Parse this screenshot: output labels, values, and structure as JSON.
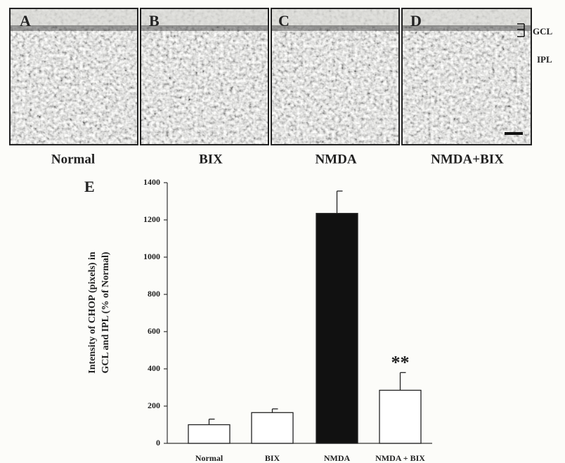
{
  "panels": [
    {
      "letter": "A",
      "label": "Normal"
    },
    {
      "letter": "B",
      "label": "BIX"
    },
    {
      "letter": "C",
      "label": "NMDA"
    },
    {
      "letter": "D",
      "label": "NMDA+BIX"
    }
  ],
  "layers": [
    "GCL",
    "IPL"
  ],
  "chart_data": {
    "type": "bar",
    "panel_label": "E",
    "ylabel": [
      "Intensity of CHOP (pixels) in",
      "GCL and IPL (% of Normal)"
    ],
    "categories": [
      "Normal",
      "BIX",
      "NMDA",
      "NMDA + BIX"
    ],
    "values": [
      100,
      165,
      1235,
      285
    ],
    "errors": [
      30,
      20,
      120,
      95
    ],
    "colors": [
      "#ffffff",
      "#ffffff",
      "#111111",
      "#ffffff"
    ],
    "annotations": [
      {
        "text": "**",
        "x": "NMDA + BIX"
      }
    ],
    "ylim": [
      0,
      1400
    ],
    "yticks": [
      0,
      200,
      400,
      600,
      800,
      1000,
      1200,
      1400
    ],
    "grid": false
  }
}
